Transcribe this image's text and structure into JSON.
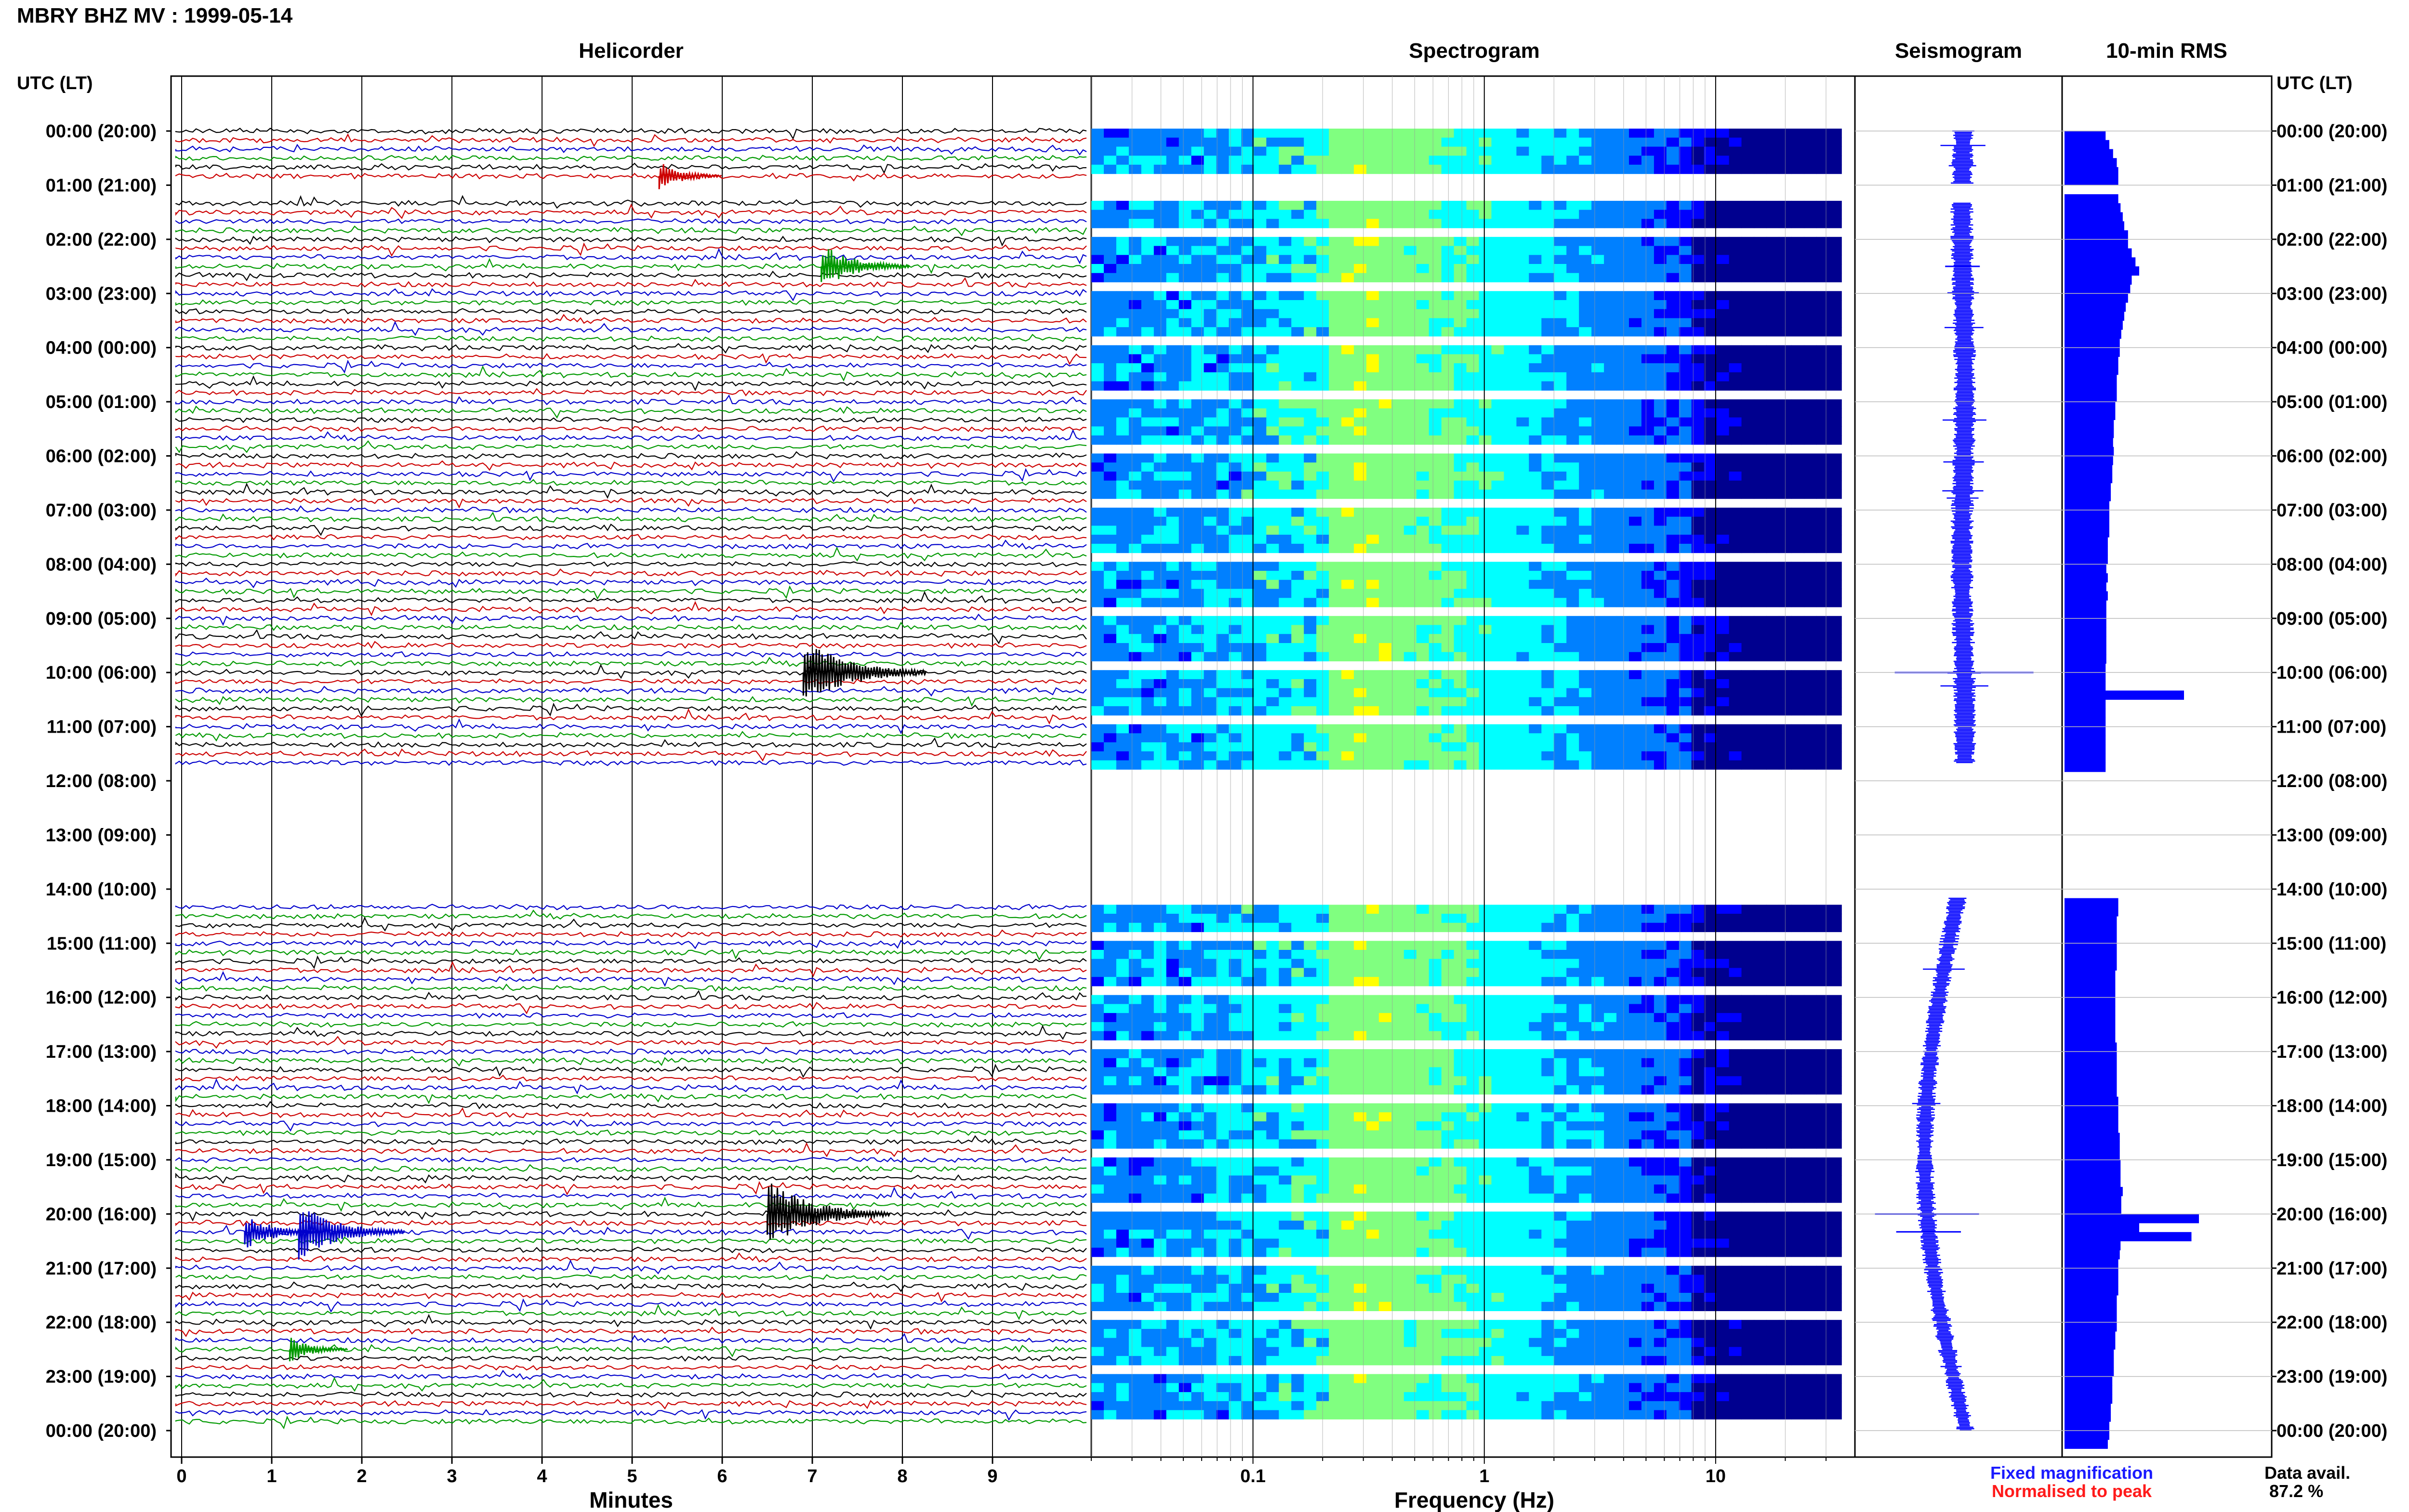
{
  "title": "MBRY BHZ MV : 1999-05-14",
  "panels": {
    "helicorder": "Helicorder",
    "spectrogram": "Spectrogram",
    "seismogram": "Seismogram",
    "rms": "10-min RMS"
  },
  "axis_label_left": "UTC (LT)",
  "axis_label_right": "UTC (LT)",
  "time_labels": [
    "00:00 (20:00)",
    "01:00 (21:00)",
    "02:00 (22:00)",
    "03:00 (23:00)",
    "04:00 (00:00)",
    "05:00 (01:00)",
    "06:00 (02:00)",
    "07:00 (03:00)",
    "08:00 (04:00)",
    "09:00 (05:00)",
    "10:00 (06:00)",
    "11:00 (07:00)",
    "12:00 (08:00)",
    "13:00 (09:00)",
    "14:00 (10:00)",
    "15:00 (11:00)",
    "16:00 (12:00)",
    "17:00 (13:00)",
    "18:00 (14:00)",
    "19:00 (15:00)",
    "20:00 (16:00)",
    "21:00 (17:00)",
    "22:00 (18:00)",
    "23:00 (19:00)",
    "00:00 (20:00)"
  ],
  "legend": {
    "fixed": "Fixed magnification",
    "normalised": "Normalised to peak",
    "fixed_color": "#1a1aff",
    "normalised_color": "#ff1a1a"
  },
  "data_avail": {
    "label": "Data avail.",
    "value": "87.2 %"
  },
  "colors": {
    "trace_cycle": [
      "#000000",
      "#cc0000",
      "#0000cc",
      "#009900"
    ],
    "seismogram": "#0000ff",
    "rms": "#0000ff"
  },
  "chart_data": [
    {
      "type": "line",
      "panel": "helicorder",
      "xlabel": "Minutes",
      "x_ticks": [
        "0",
        "1",
        "2",
        "3",
        "4",
        "5",
        "6",
        "7",
        "8",
        "9"
      ],
      "xlim": [
        0,
        10
      ],
      "ylim_hours": [
        0,
        24
      ],
      "line_interval_minutes": 10,
      "data_gaps_hours": [
        [
          0.97,
          1.33
        ],
        [
          11.67,
          14.17
        ]
      ],
      "events": [
        {
          "hour": 0.83,
          "minute": 5.3,
          "amplitude": 1.0,
          "color": "#cc0000"
        },
        {
          "hour": 2.5,
          "minute": 7.1,
          "amplitude": 1.6,
          "color": "#009900"
        },
        {
          "hour": 10.0,
          "minute": 6.9,
          "amplitude": 2.4,
          "color": "#000000"
        },
        {
          "hour": 20.0,
          "minute": 6.5,
          "amplitude": 2.4,
          "color": "#000000"
        },
        {
          "hour": 20.33,
          "minute": 0.7,
          "amplitude": 1.3,
          "color": "#0000cc"
        },
        {
          "hour": 20.33,
          "minute": 1.3,
          "amplitude": 2.0,
          "color": "#0000cc"
        },
        {
          "hour": 22.5,
          "minute": 1.2,
          "amplitude": 0.9,
          "color": "#009900"
        }
      ]
    },
    {
      "type": "heatmap",
      "panel": "spectrogram",
      "xlabel": "Frequency (Hz)",
      "x_scale": "log",
      "xlim": [
        0.02,
        40
      ],
      "x_ticks": [
        {
          "value": 0.1,
          "label": "0.1"
        },
        {
          "value": 1,
          "label": "1"
        },
        {
          "value": 10,
          "label": "10"
        }
      ],
      "peak_band_hz": [
        0.2,
        0.45
      ],
      "colormap": [
        "#00008f",
        "#0000ff",
        "#0080ff",
        "#00ffff",
        "#80ff80",
        "#ffff00"
      ]
    },
    {
      "type": "line",
      "panel": "seismogram",
      "description_values": {
        "spike_hours": [
          2.5,
          10.0,
          20.0,
          20.33
        ],
        "spike_amplitudes": [
          1.5,
          6.0,
          4.5,
          2.8
        ]
      }
    },
    {
      "type": "bar",
      "panel": "rms",
      "orientation": "horizontal",
      "interval_minutes": 10,
      "values_relative": [
        0.55,
        0.6,
        0.65,
        0.7,
        0.72,
        0.72,
        0.7,
        0.72,
        0.75,
        0.78,
        0.8,
        0.85,
        0.85,
        0.9,
        0.95,
        1.0,
        0.9,
        0.88,
        0.85,
        0.82,
        0.8,
        0.78,
        0.76,
        0.74,
        0.74,
        0.72,
        0.72,
        0.7,
        0.7,
        0.7,
        0.68,
        0.68,
        0.66,
        0.66,
        0.65,
        0.66,
        0.65,
        0.64,
        0.64,
        0.62,
        0.62,
        0.6,
        0.6,
        0.6,
        0.6,
        0.58,
        0.58,
        0.58,
        0.56,
        0.58,
        0.56,
        0.58,
        0.56,
        0.56,
        0.56,
        0.56,
        0.56,
        0.56,
        0.56,
        0.55,
        0.55,
        0.55,
        1.6,
        0.55,
        0.55,
        0.55,
        0.55,
        0.55,
        0.55,
        0.55,
        0.55,
        0.55,
        0.6,
        0.62,
        0.66,
        0.7,
        0.74,
        0.76,
        0.76,
        0.76,
        0.75,
        0.75,
        0.74,
        0.74,
        0.72,
        0.72,
        0.72,
        0.7,
        0.7,
        0.7,
        0.7,
        0.7,
        0.7,
        0.68,
        0.68,
        0.68,
        0.68,
        0.68,
        0.68,
        0.68,
        0.68,
        0.7,
        0.7,
        0.7,
        0.7,
        0.7,
        0.7,
        0.72,
        0.72,
        0.72,
        0.72,
        0.74,
        0.74,
        0.74,
        0.75,
        0.75,
        0.75,
        0.78,
        0.76,
        0.76,
        1.8,
        1.0,
        1.7,
        0.75,
        0.74,
        0.72,
        0.72,
        0.72,
        0.72,
        0.7,
        0.7,
        0.7,
        0.7,
        0.68,
        0.68,
        0.66,
        0.66,
        0.66,
        0.64,
        0.64,
        0.64,
        0.62,
        0.62,
        0.6,
        0.6,
        0.58
      ],
      "gap_ranges_hours": [
        [
          0.97,
          1.1
        ],
        [
          11.67,
          14.08
        ]
      ]
    }
  ]
}
